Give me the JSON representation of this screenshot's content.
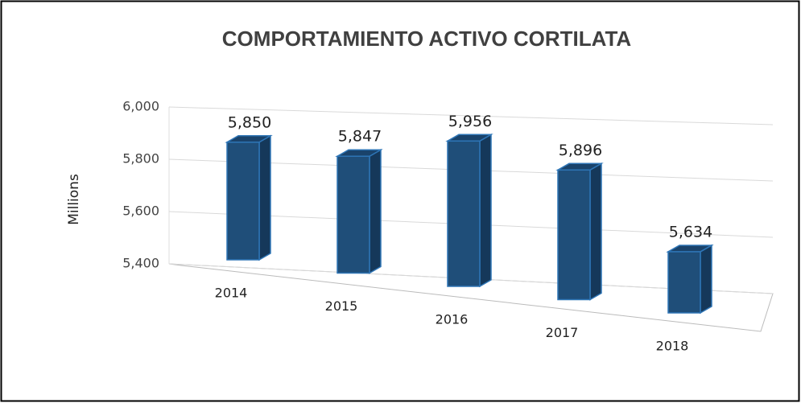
{
  "chart_data": {
    "type": "bar3d",
    "title": "COMPORTAMIENTO ACTIVO CORTILATA",
    "y_axis_label": "Millions",
    "categories": [
      "2014",
      "2015",
      "2016",
      "2017",
      "2018"
    ],
    "values": [
      5850,
      5847,
      5956,
      5896,
      5634
    ],
    "value_labels": [
      "5,850",
      "5,847",
      "5,956",
      "5,896",
      "5,634"
    ],
    "color": "#1f4e79",
    "ylim": [
      5400,
      6000
    ],
    "yticks": [
      {
        "value": 5400,
        "label": "5,400"
      },
      {
        "value": 5600,
        "label": "5,600"
      },
      {
        "value": 5800,
        "label": "5,800"
      },
      {
        "value": 6000,
        "label": "6,000"
      }
    ],
    "grid": true
  }
}
